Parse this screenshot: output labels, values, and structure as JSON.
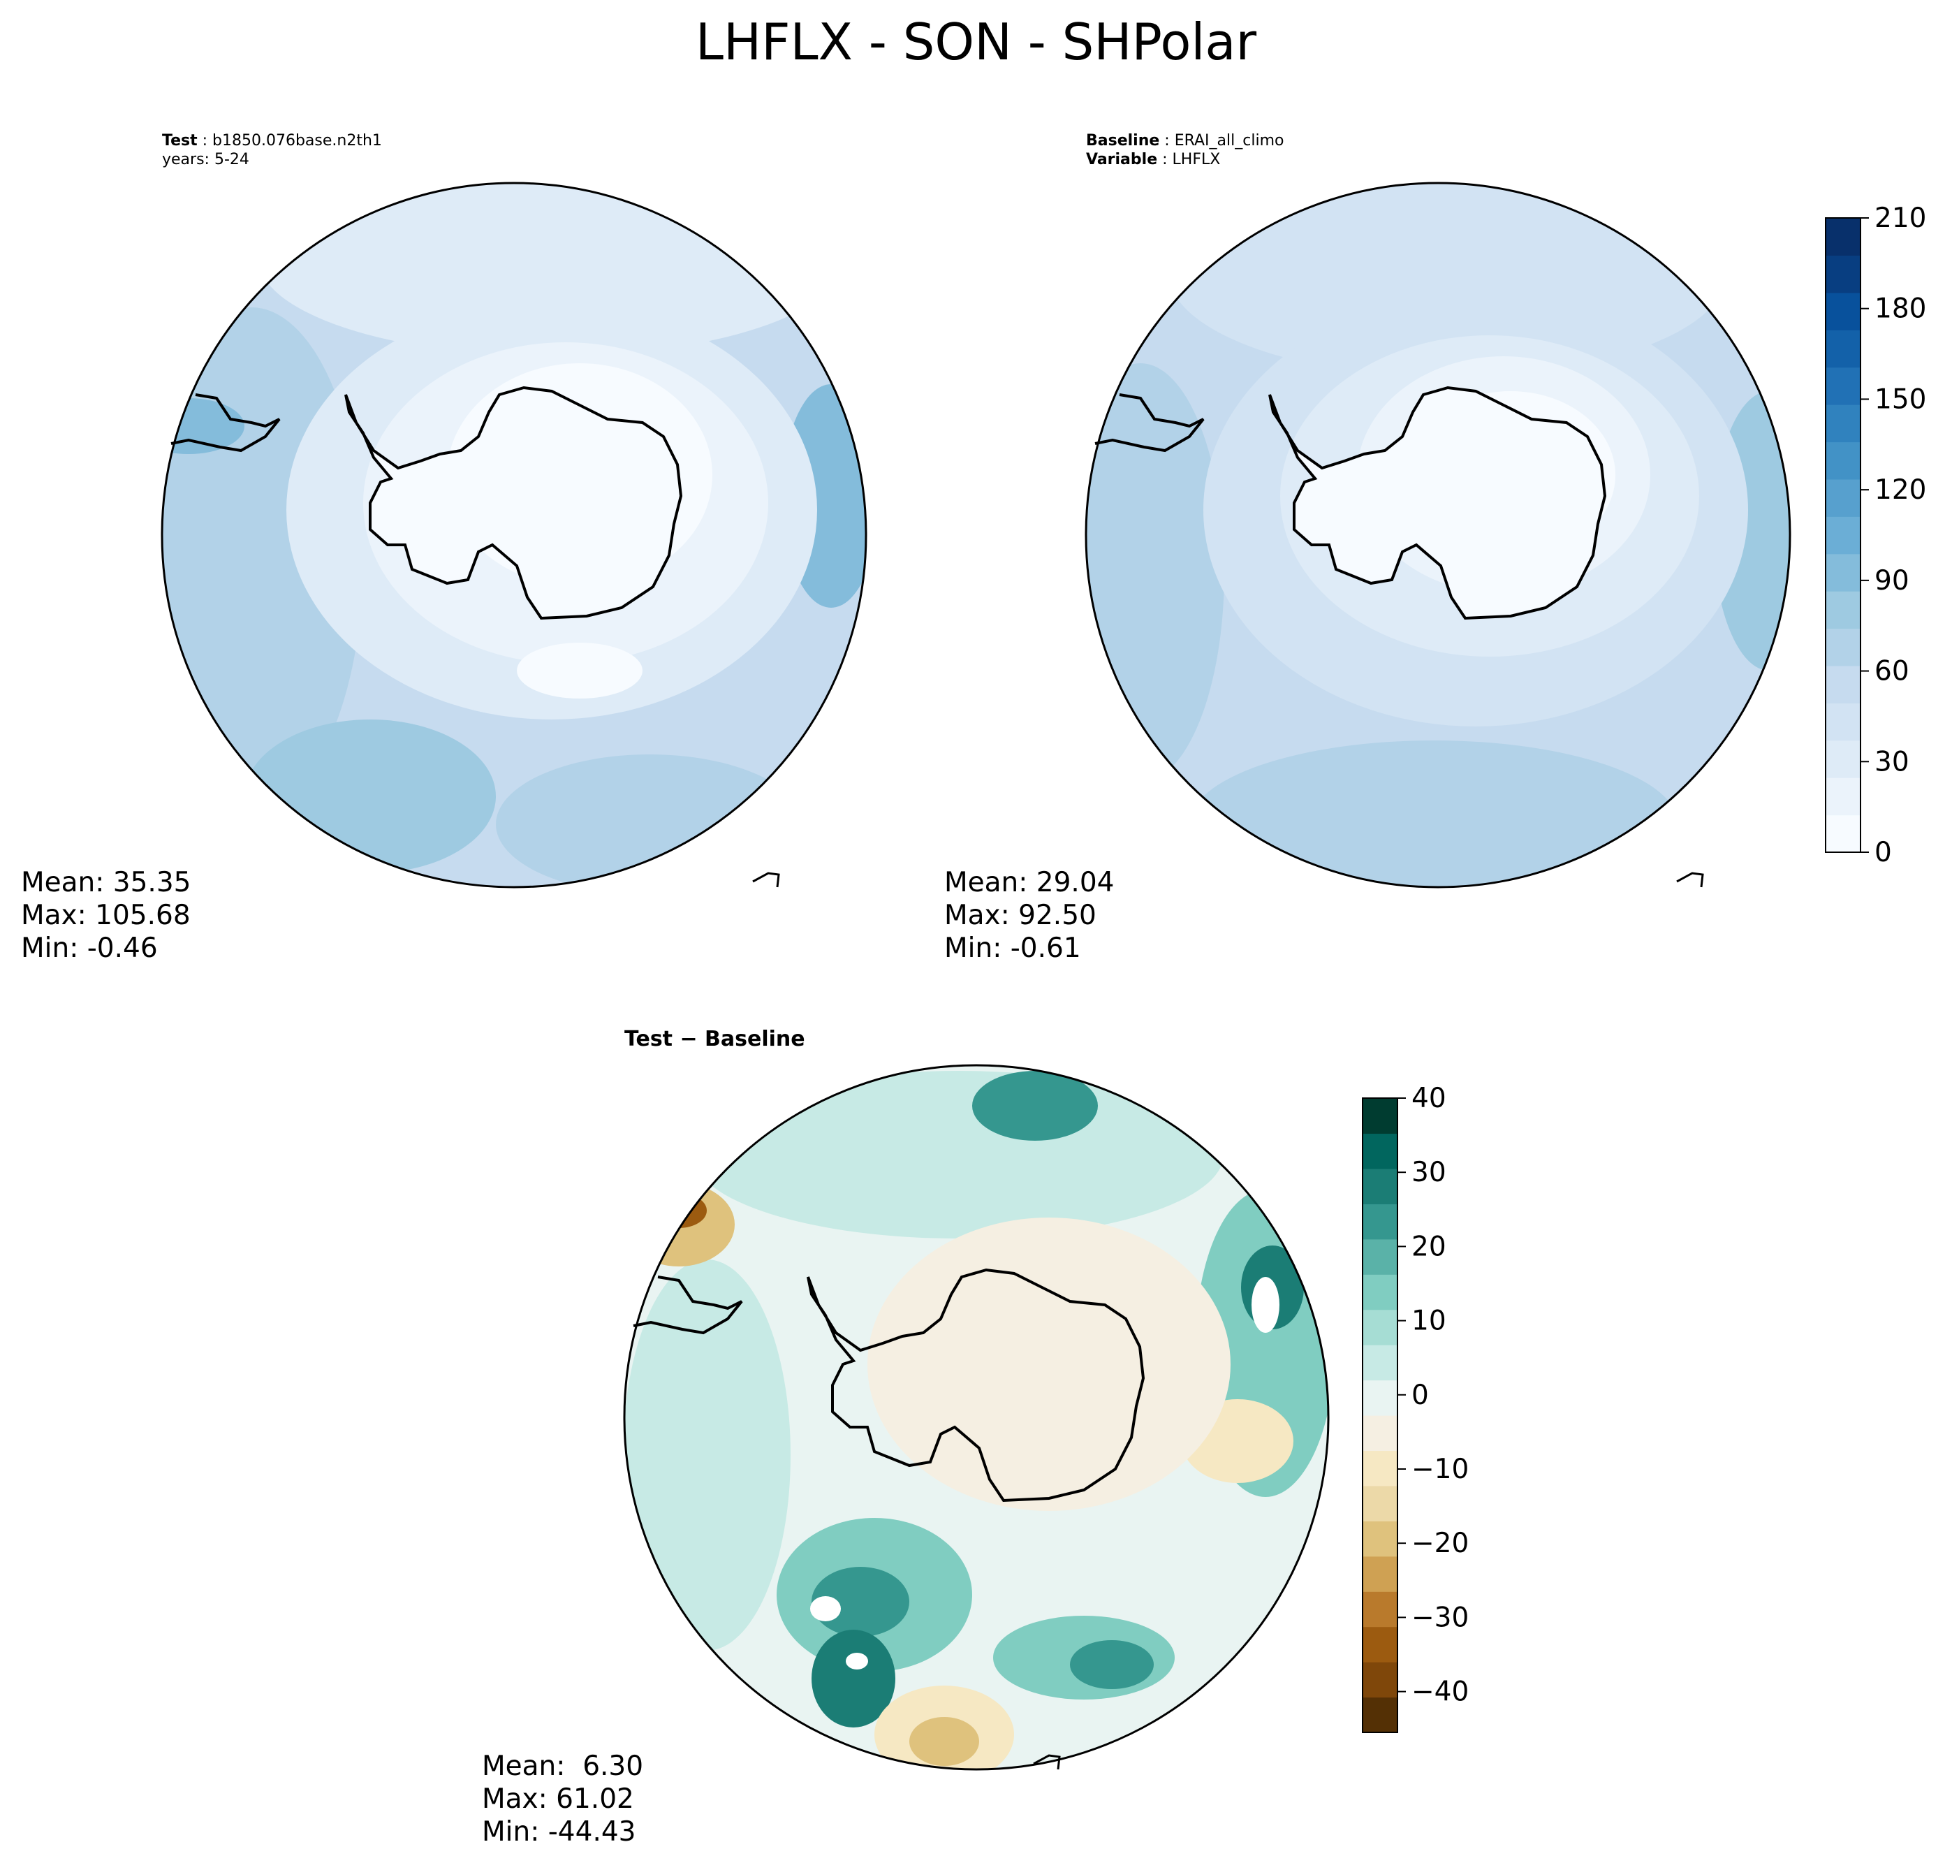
{
  "title": "LHFLX - SON - SHPolar",
  "test_panel": {
    "label_key": "Test",
    "label_value": "b1850.076base.n2th1",
    "years": "years: 5-24",
    "mean": "Mean: 35.35",
    "max": "Max: 105.68",
    "min": "Min: -0.46"
  },
  "baseline_panel": {
    "label_key": "Baseline",
    "label_value": "ERAI_all_climo",
    "variable_key": "Variable",
    "variable_value": "LHFLX",
    "mean": "Mean: 29.04",
    "max": "Max: 92.50",
    "min": "Min: -0.61"
  },
  "diff_panel": {
    "label": "Test − Baseline",
    "mean": "Mean:  6.30",
    "max": "Max: 61.02",
    "min": "Min: -44.43"
  },
  "colorbar_main": {
    "ticks": [
      "0",
      "30",
      "60",
      "90",
      "120",
      "150",
      "180",
      "210"
    ],
    "colors": [
      "#f7fbff",
      "#ebf3fb",
      "#deebf7",
      "#d2e3f3",
      "#c6dbef",
      "#b2d2e8",
      "#9ecae1",
      "#84bcdb",
      "#6baed6",
      "#57a0ce",
      "#4292c6",
      "#3082be",
      "#2171b5",
      "#1361a9",
      "#08519c",
      "#083e81",
      "#08306b"
    ]
  },
  "colorbar_diff": {
    "ticks": [
      "40",
      "30",
      "20",
      "10",
      "0",
      "−10",
      "−20",
      "−30",
      "−40"
    ],
    "colors": [
      "#543005",
      "#7f470a",
      "#9c5b10",
      "#b97a2c",
      "#cfa153",
      "#dfc27d",
      "#ecd9a8",
      "#f6e8c3",
      "#f5efe2",
      "#e9f4f2",
      "#c7eae5",
      "#a6ddd4",
      "#80cdc1",
      "#5ab2a8",
      "#35978f",
      "#1b7d75",
      "#01665e",
      "#003c30"
    ]
  },
  "chart_data": [
    {
      "type": "heatmap",
      "title": "Test",
      "subtitle": "b1850.076base.n2th1",
      "projection": "south polar stereographic",
      "stats": {
        "mean": 35.35,
        "max": 105.68,
        "min": -0.46
      },
      "colorbar_range": [
        0,
        210
      ]
    },
    {
      "type": "heatmap",
      "title": "Baseline",
      "subtitle": "ERAI_all_climo",
      "projection": "south polar stereographic",
      "stats": {
        "mean": 29.04,
        "max": 92.5,
        "min": -0.61
      },
      "colorbar_range": [
        0,
        210
      ]
    },
    {
      "type": "heatmap",
      "title": "Test − Baseline",
      "projection": "south polar stereographic",
      "stats": {
        "mean": 6.3,
        "max": 61.02,
        "min": -44.43
      },
      "colorbar_range": [
        -45,
        40
      ]
    }
  ]
}
